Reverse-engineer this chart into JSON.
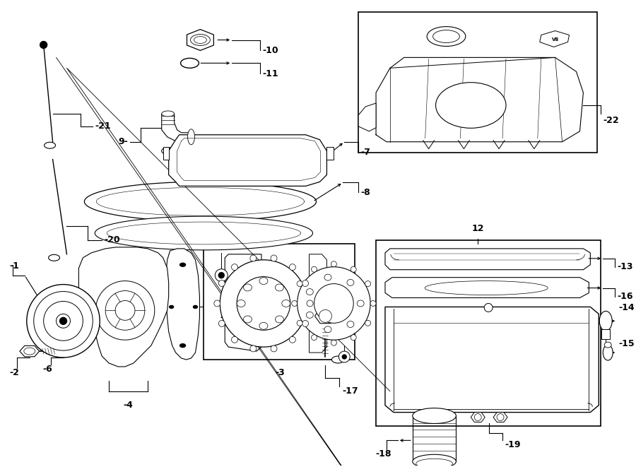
{
  "bg_color": "#ffffff",
  "lc": "#000000",
  "lw": 0.7,
  "figsize": [
    9.0,
    6.61
  ],
  "dpi": 100
}
